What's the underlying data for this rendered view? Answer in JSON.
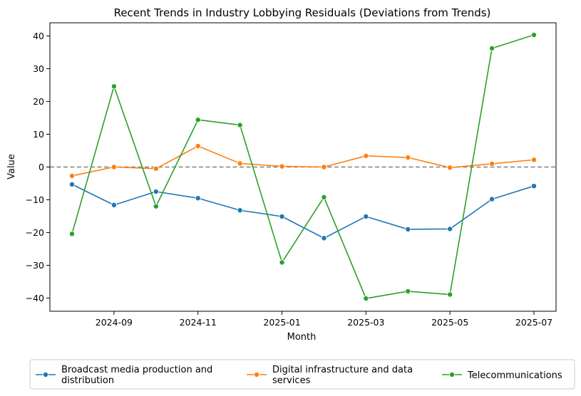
{
  "chart_data": {
    "type": "line",
    "title": "Recent Trends in Industry Lobbying Residuals (Deviations from Trends)",
    "xlabel": "Month",
    "ylabel": "Value",
    "x": [
      "2024-08",
      "2024-09",
      "2024-10",
      "2024-11",
      "2024-12",
      "2025-01",
      "2025-02",
      "2025-03",
      "2025-04",
      "2025-05",
      "2025-06",
      "2025-07"
    ],
    "xticks": [
      "2024-09",
      "2024-11",
      "2025-01",
      "2025-03",
      "2025-05",
      "2025-07"
    ],
    "yticks": [
      -40,
      -30,
      -20,
      -10,
      0,
      10,
      20,
      30,
      40
    ],
    "ylim": [
      -44,
      44
    ],
    "reference_line": {
      "y": 0,
      "style": "dashed",
      "color": "#808080"
    },
    "grid": false,
    "legend_position": "bottom",
    "series": [
      {
        "name": "Broadcast media production and distribution",
        "legend_lines": [
          "Broadcast media production and",
          "distribution"
        ],
        "color": "#1f77b4",
        "values": [
          -5.3,
          -11.6,
          -7.5,
          -9.5,
          -13.2,
          -15.1,
          -21.7,
          -15.1,
          -19.0,
          -18.9,
          -9.8,
          -5.8
        ]
      },
      {
        "name": "Digital infrastructure and data services",
        "legend_lines": [
          "Digital infrastructure and data",
          "services"
        ],
        "color": "#ff7f0e",
        "values": [
          -2.7,
          0.0,
          -0.5,
          6.4,
          1.1,
          0.2,
          0.0,
          3.4,
          2.9,
          -0.2,
          1.0,
          2.2
        ]
      },
      {
        "name": "Telecommunications",
        "legend_lines": [
          "Telecommunications"
        ],
        "color": "#2ca02c",
        "values": [
          -20.4,
          24.6,
          -12.0,
          14.4,
          12.8,
          -29.1,
          -9.2,
          -40.1,
          -37.9,
          -38.9,
          36.2,
          40.3
        ]
      }
    ]
  }
}
